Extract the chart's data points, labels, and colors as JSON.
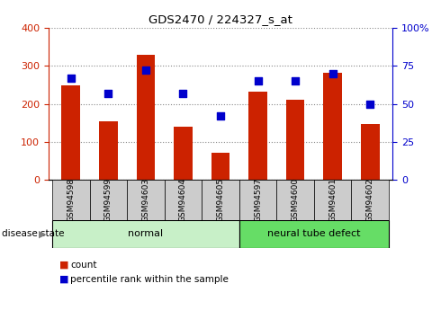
{
  "title": "GDS2470 / 224327_s_at",
  "samples": [
    "GSM94598",
    "GSM94599",
    "GSM94603",
    "GSM94604",
    "GSM94605",
    "GSM94597",
    "GSM94600",
    "GSM94601",
    "GSM94602"
  ],
  "counts": [
    248,
    155,
    330,
    140,
    72,
    232,
    210,
    282,
    147
  ],
  "percentile_ranks": [
    67,
    57,
    72,
    57,
    42,
    65,
    65,
    70,
    50
  ],
  "groups": [
    {
      "label": "normal",
      "start": 0,
      "end": 5,
      "color": "#c8f0c8"
    },
    {
      "label": "neural tube defect",
      "start": 5,
      "end": 9,
      "color": "#66dd66"
    }
  ],
  "bar_color": "#cc2200",
  "dot_color": "#0000cc",
  "left_ylim": [
    0,
    400
  ],
  "right_ylim": [
    0,
    100
  ],
  "left_yticks": [
    0,
    100,
    200,
    300,
    400
  ],
  "right_yticks": [
    0,
    25,
    50,
    75,
    100
  ],
  "right_yticklabels": [
    "0",
    "25",
    "50",
    "75",
    "100%"
  ],
  "left_ylabel_color": "#cc2200",
  "right_ylabel_color": "#0000cc",
  "grid_color": "#888888",
  "tick_label_area_color": "#cccccc",
  "disease_state_label": "disease state",
  "legend_count_label": "count",
  "legend_percentile_label": "percentile rank within the sample"
}
